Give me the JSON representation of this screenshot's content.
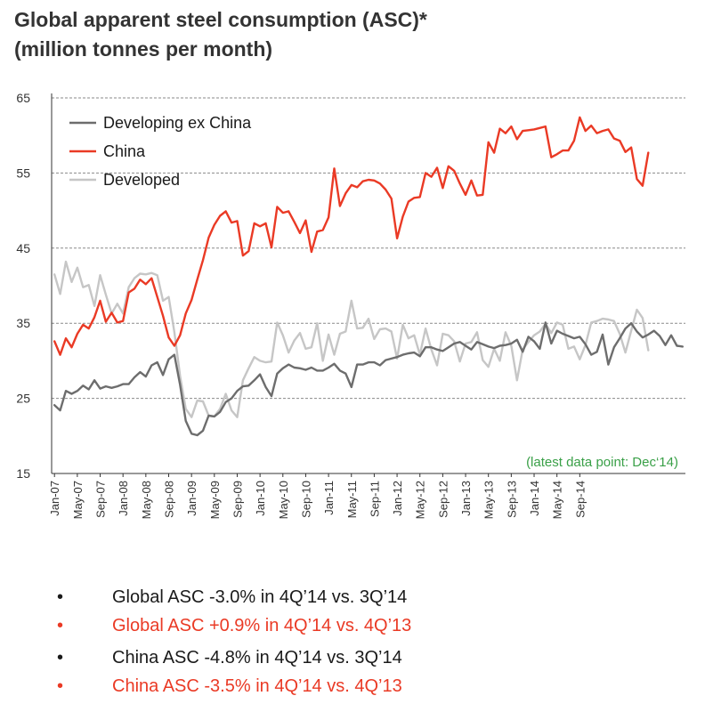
{
  "title_line1": "Global apparent steel consumption (ASC)*",
  "title_line2": "(million tonnes per month)",
  "chart_data": {
    "type": "line",
    "xlabel": "",
    "ylabel": "",
    "ylim": [
      15,
      65
    ],
    "yticks": [
      15,
      25,
      35,
      45,
      55,
      65
    ],
    "grid": "horizontal dashed",
    "legend_position": "top-left",
    "annotation": "(latest data point: Dec‘14)",
    "x_tick_labels": [
      "Jan-07",
      "May-07",
      "Sep-07",
      "Jan-08",
      "May-08",
      "Sep-08",
      "Jan-09",
      "May-09",
      "Sep-09",
      "Jan-10",
      "May-10",
      "Sep-10",
      "Jan-11",
      "May-11",
      "Sep-11",
      "Jan-12",
      "May-12",
      "Sep-12",
      "Jan-13",
      "May-13",
      "Sep-13",
      "Jan-14",
      "May-14",
      "Sep-14"
    ],
    "x_start": "Jan-07",
    "x_end": "Dec-14",
    "series": [
      {
        "name": "Developing ex China",
        "color": "#6d6d6d",
        "values": [
          24.1,
          23.4,
          26.0,
          25.6,
          26.0,
          26.7,
          26.2,
          27.4,
          26.3,
          26.6,
          26.4,
          26.6,
          26.9,
          26.9,
          27.8,
          28.5,
          27.9,
          29.4,
          29.8,
          28.1,
          30.2,
          30.8,
          26.8,
          22.0,
          20.3,
          20.1,
          20.7,
          22.7,
          22.6,
          23.2,
          24.5,
          25.0,
          26.0,
          26.6,
          26.7,
          27.4,
          28.2,
          26.5,
          25.3,
          28.3,
          29.0,
          29.5,
          29.1,
          29.0,
          28.8,
          29.1,
          28.7,
          28.7,
          29.1,
          29.6,
          28.7,
          28.3,
          26.5,
          29.5,
          29.5,
          29.8,
          29.8,
          29.4,
          30.1,
          30.3,
          30.5,
          30.8,
          31.0,
          31.1,
          30.6,
          31.8,
          31.8,
          31.5,
          31.3,
          31.8,
          32.3,
          32.5,
          32.0,
          31.5,
          32.5,
          32.2,
          31.9,
          31.7,
          32.0,
          32.1,
          32.3,
          32.8,
          31.2,
          33.2,
          32.6,
          31.6,
          35.1,
          32.3,
          34.0,
          33.6,
          33.3,
          33.0,
          33.2,
          32.2,
          30.8,
          31.2,
          33.5,
          29.5,
          31.8,
          33.0,
          34.3,
          35.0,
          33.9,
          33.1,
          33.5,
          34.0,
          33.3,
          32.1,
          33.4,
          32.0,
          31.9
        ]
      },
      {
        "name": "China",
        "color": "#ea3a25",
        "values": [
          32.6,
          30.8,
          33.0,
          31.8,
          33.6,
          34.8,
          34.3,
          35.8,
          38.0,
          35.2,
          36.4,
          35.1,
          35.3,
          39.1,
          39.6,
          40.8,
          40.2,
          41.0,
          38.5,
          36.0,
          33.1,
          32.0,
          33.4,
          36.3,
          38.1,
          40.8,
          43.4,
          46.4,
          48.1,
          49.3,
          49.9,
          48.4,
          48.6,
          44.0,
          44.6,
          48.3,
          47.9,
          48.3,
          45.1,
          50.5,
          49.7,
          49.9,
          48.5,
          47.0,
          48.7,
          44.5,
          47.2,
          47.4,
          49.1,
          55.6,
          50.6,
          52.3,
          53.4,
          53.1,
          53.9,
          54.1,
          54.0,
          53.6,
          52.8,
          51.6,
          46.3,
          49.2,
          51.2,
          51.7,
          51.8,
          55.0,
          54.5,
          55.7,
          53.0,
          55.9,
          55.3,
          53.6,
          52.1,
          54.0,
          52.0,
          52.1,
          59.1,
          57.7,
          60.9,
          60.3,
          61.2,
          59.5,
          60.6,
          60.7,
          60.8,
          61.0,
          61.2,
          57.1,
          57.5,
          58.0,
          58.0,
          59.3,
          62.4,
          60.6,
          61.3,
          60.3,
          60.6,
          60.8,
          59.6,
          59.3,
          57.8,
          58.4,
          54.2,
          53.3,
          57.7
        ]
      },
      {
        "name": "Developed",
        "color": "#c6c6c6",
        "values": [
          41.5,
          38.9,
          43.2,
          40.5,
          42.4,
          39.8,
          40.1,
          37.3,
          41.4,
          38.8,
          36.3,
          37.6,
          36.3,
          39.8,
          41.0,
          41.6,
          41.5,
          41.7,
          41.4,
          38.0,
          38.5,
          33.8,
          28.0,
          23.6,
          22.5,
          24.7,
          24.6,
          22.7,
          22.6,
          23.6,
          25.6,
          23.4,
          22.5,
          27.4,
          29.0,
          30.5,
          30.0,
          29.8,
          29.9,
          35.1,
          33.4,
          31.1,
          32.7,
          33.7,
          31.6,
          31.8,
          35.0,
          30.0,
          33.5,
          30.8,
          33.6,
          33.9,
          38.0,
          34.3,
          34.4,
          35.6,
          32.9,
          34.2,
          34.3,
          33.9,
          30.3,
          34.8,
          33.0,
          33.4,
          30.8,
          34.3,
          31.5,
          29.4,
          33.6,
          33.4,
          32.6,
          29.9,
          32.3,
          32.5,
          33.8,
          30.1,
          29.2,
          31.6,
          30.0,
          33.8,
          32.0,
          27.4,
          31.5,
          32.5,
          33.4,
          33.9,
          34.9,
          33.7,
          35.1,
          34.8,
          31.6,
          31.9,
          30.2,
          32.1,
          35.1,
          35.3,
          35.6,
          35.5,
          35.3,
          33.6,
          31.1,
          34.0,
          36.8,
          35.7,
          31.4
        ]
      }
    ]
  },
  "bullets": [
    {
      "text": "Global ASC -3.0% in 4Q’14 vs. 3Q’14",
      "color": "#1a1a1a"
    },
    {
      "text": "Global ASC +0.9% in 4Q’14 vs. 4Q’13",
      "color": "#ea3a25"
    },
    {
      "text": "China ASC -4.8% in 4Q’14 vs. 3Q’14",
      "color": "#1a1a1a"
    },
    {
      "text": "China ASC -3.5% in 4Q’14 vs. 4Q’13",
      "color": "#ea3a25"
    }
  ],
  "annotation_color": "#3aa048"
}
